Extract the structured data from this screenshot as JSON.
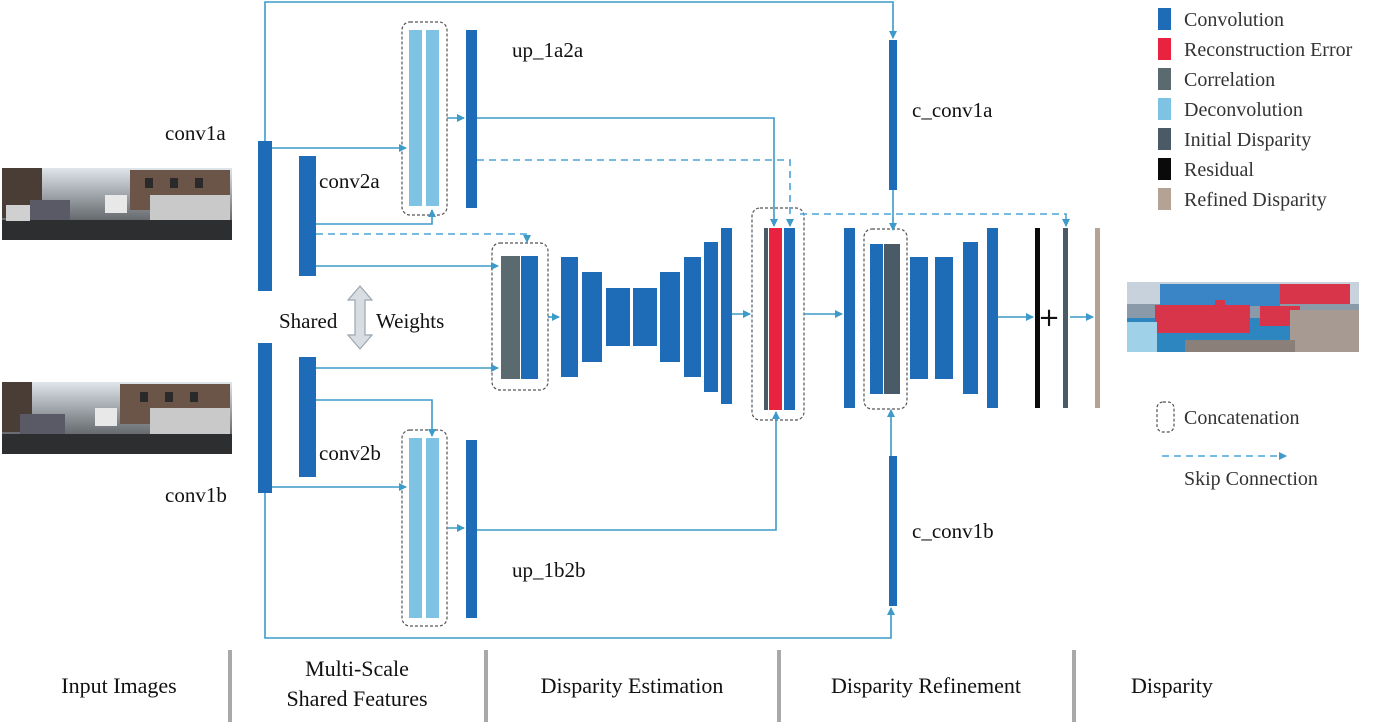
{
  "legend": {
    "items": [
      {
        "label": "Convolution",
        "color": "#1e6bb8"
      },
      {
        "label": "Reconstruction Error",
        "color": "#e8223f"
      },
      {
        "label": "Correlation",
        "color": "#5a6a6e"
      },
      {
        "label": "Deconvolution",
        "color": "#7ec3e3"
      },
      {
        "label": "Initial Disparity",
        "color": "#4a5a66"
      },
      {
        "label": "Residual",
        "color": "#0a0a0a"
      },
      {
        "label": "Refined Disparity",
        "color": "#b4a395"
      }
    ],
    "concatenation": "Concatenation",
    "skip": "Skip Connection"
  },
  "labels": {
    "conv1a": "conv1a",
    "conv2a": "conv2a",
    "conv1b": "conv1b",
    "conv2b": "conv2b",
    "up_1a2a": "up_1a2a",
    "up_1b2b": "up_1b2b",
    "c_conv1a": "c_conv1a",
    "c_conv1b": "c_conv1b",
    "shared": "Shared",
    "weights": "Weights",
    "plus": "+"
  },
  "stages": {
    "input": "Input Images",
    "multiscale_line1": "Multi-Scale",
    "multiscale_line2": "Shared Features",
    "estimation": "Disparity Estimation",
    "refinement": "Disparity Refinement",
    "disparity": "Disparity"
  }
}
